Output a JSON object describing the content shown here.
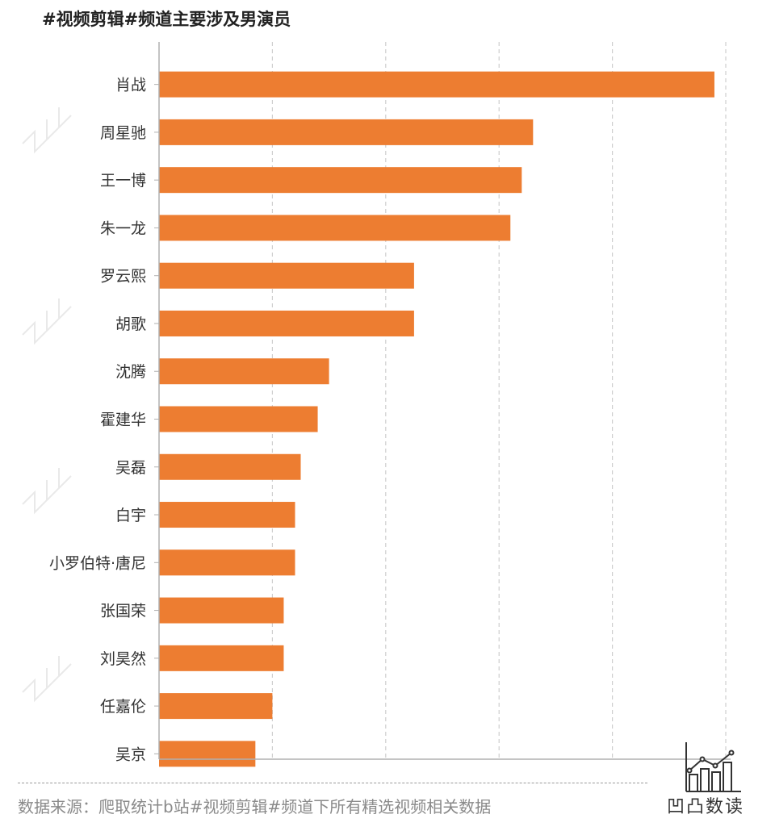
{
  "title": "#视频剪辑#频道主要涉及男演员",
  "source": "数据来源：爬取统计b站#视频剪辑#频道下所有精选视频相关数据",
  "brand": "凹凸数读",
  "colors": {
    "bar": "#ed7d31",
    "grid": "#cfcfcf",
    "axis": "#b0b0b0",
    "label": "#333333"
  },
  "chart_data": {
    "type": "bar",
    "orientation": "horizontal",
    "categories": [
      "肖战",
      "周星驰",
      "王一博",
      "朱一龙",
      "罗云熙",
      "胡歌",
      "沈腾",
      "霍建华",
      "吴磊",
      "白宇",
      "小罗伯特·唐尼",
      "张国荣",
      "刘昊然",
      "任嘉伦",
      "吴京"
    ],
    "values": [
      49,
      33,
      32,
      31,
      22.5,
      22.5,
      15,
      14,
      12.5,
      12,
      12,
      11,
      11,
      10,
      8.5
    ],
    "xlim": [
      0,
      50
    ],
    "gridlines": [
      10,
      20,
      30,
      40,
      50
    ],
    "grid": true,
    "tick_labels_shown": false
  }
}
